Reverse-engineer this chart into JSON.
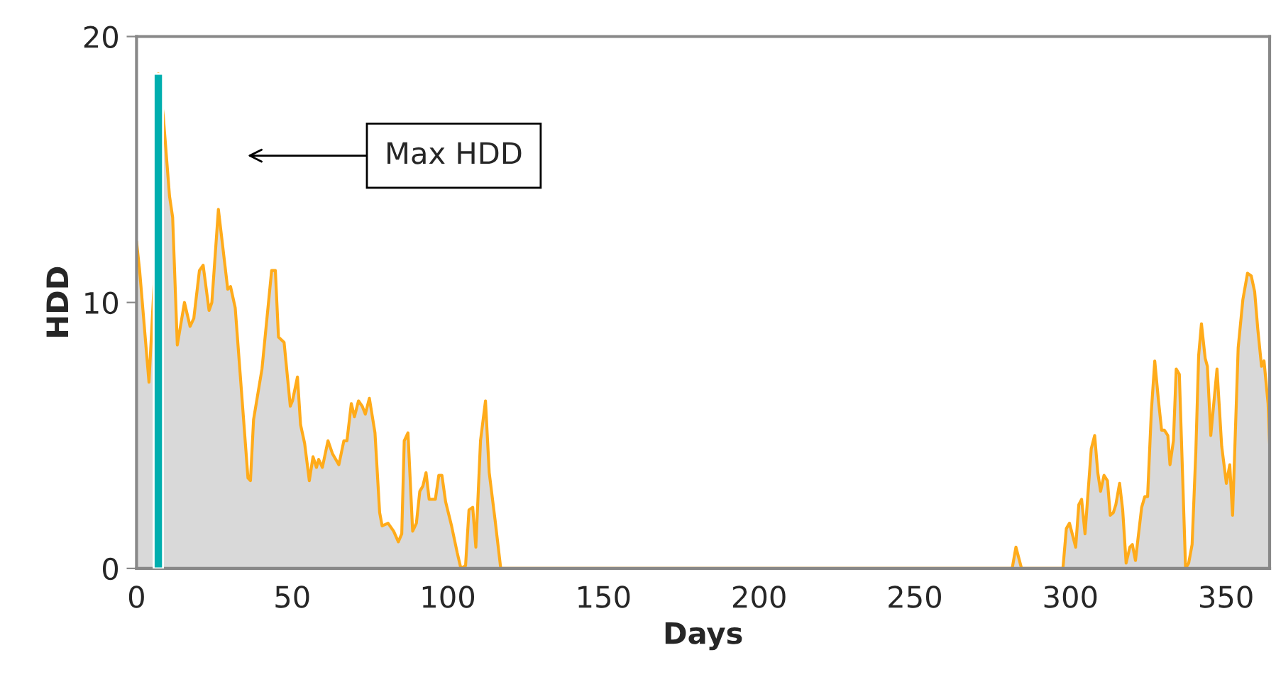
{
  "chart_data": {
    "type": "area",
    "xlabel": "Days",
    "ylabel": "HDD",
    "xlim": [
      0,
      364
    ],
    "ylim": [
      0,
      20
    ],
    "xticks": [
      0,
      50,
      100,
      150,
      200,
      250,
      300,
      350
    ],
    "yticks": [
      0,
      10,
      20
    ],
    "grid": false,
    "legend": false,
    "annotations": [
      "Max HDD"
    ],
    "series": [
      {
        "color": "#ffab1a",
        "x": [
          0,
          1,
          4,
          6,
          7,
          8.6,
          10.6,
          11.6,
          13.1,
          15.4,
          17.2,
          18.4,
          20.2,
          21.4,
          23.3,
          24.2,
          26.3,
          29.3,
          30.2,
          31.7,
          35.8,
          36.6,
          37.6,
          40.3,
          43.4,
          44.6,
          45.6,
          47.4,
          49.4,
          50.1,
          51.7,
          52.7,
          54,
          55.5,
          56.7,
          57.8,
          58.5,
          59.7,
          61.5,
          63,
          65,
          66.6,
          67.6,
          69,
          70,
          71.3,
          72.5,
          73.5,
          74.8,
          76.6,
          78.1,
          78.9,
          80.8,
          82.6,
          84.1,
          85.2,
          86,
          87.2,
          88.7,
          89.9,
          91,
          92,
          93,
          94,
          96,
          97.1,
          98.1,
          99.3,
          101.2,
          103,
          104.2,
          105.7,
          106.8,
          108,
          109,
          110.5,
          112.1,
          113.3,
          115.2,
          117,
          281.3,
          282.5,
          284.3,
          297.6,
          298.7,
          299.7,
          301.7,
          302.7,
          303.6,
          304.7,
          306.7,
          307.8,
          308.8,
          309.7,
          310.8,
          311.9,
          312.8,
          313.8,
          314.6,
          315.8,
          316.8,
          317.9,
          319.1,
          319.9,
          320.9,
          322.9,
          323.9,
          324.8,
          326,
          327.1,
          328.3,
          329.3,
          330.2,
          331.3,
          332,
          333.1,
          334,
          335,
          337,
          338,
          339.1,
          340.3,
          341.2,
          342.1,
          343.3,
          344,
          345.1,
          347.1,
          348.6,
          350.1,
          351.2,
          352.1,
          353.9,
          355.4,
          356.9,
          358.1,
          359.2,
          360.2,
          361.4,
          362.2,
          363.5,
          364
        ],
        "values": [
          12.3,
          11.2,
          7.0,
          11.5,
          18.6,
          17.0,
          14.0,
          13.2,
          8.4,
          10.0,
          9.1,
          9.4,
          11.2,
          11.4,
          9.7,
          10.0,
          13.5,
          10.5,
          10.6,
          9.8,
          3.4,
          3.3,
          5.6,
          7.5,
          11.2,
          11.2,
          8.7,
          8.5,
          6.1,
          6.3,
          7.2,
          5.4,
          4.7,
          3.3,
          4.2,
          3.8,
          4.1,
          3.8,
          4.8,
          4.3,
          3.9,
          4.8,
          4.8,
          6.2,
          5.7,
          6.3,
          6.1,
          5.8,
          6.4,
          5.1,
          2.1,
          1.6,
          1.7,
          1.4,
          1.0,
          1.3,
          4.8,
          5.1,
          1.4,
          1.7,
          2.9,
          3.1,
          3.6,
          2.6,
          2.6,
          3.5,
          3.5,
          2.5,
          1.6,
          0.6,
          0.0,
          0.1,
          2.2,
          2.3,
          0.8,
          4.8,
          6.3,
          3.6,
          1.8,
          0.0,
          0.0,
          0.8,
          0.0,
          0.0,
          1.5,
          1.7,
          0.8,
          2.4,
          2.6,
          1.3,
          4.5,
          5.0,
          3.6,
          2.9,
          3.5,
          3.3,
          2.0,
          2.1,
          2.4,
          3.2,
          2.2,
          0.2,
          0.8,
          0.9,
          0.3,
          2.3,
          2.7,
          2.7,
          5.9,
          7.8,
          6.3,
          5.2,
          5.2,
          5.0,
          3.9,
          4.8,
          7.5,
          7.3,
          0.0,
          0.2,
          0.9,
          4.4,
          8.0,
          9.2,
          7.9,
          7.6,
          5.0,
          7.5,
          4.6,
          3.2,
          3.9,
          2.0,
          8.3,
          10.1,
          11.1,
          11.0,
          10.4,
          9.0,
          7.6,
          7.8,
          6.2,
          4.7
        ]
      },
      {
        "type": "bar",
        "color": "#00aeae",
        "x": [
          7
        ],
        "values": [
          18.6
        ]
      }
    ]
  }
}
